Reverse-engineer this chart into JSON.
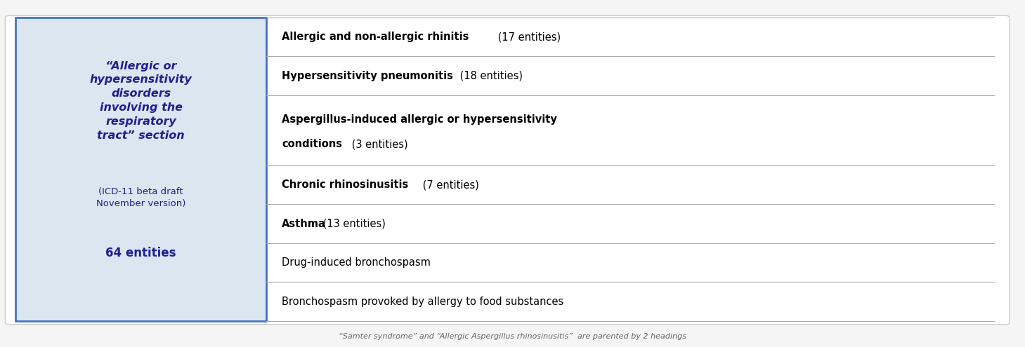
{
  "fig_width": 14.59,
  "fig_height": 4.95,
  "background_color": "#f5f5f5",
  "outer_box_color": "#ffffff",
  "outer_box_edge": "#cccccc",
  "left_panel_bg": "#dce6f1",
  "left_panel_border": "#4472c4",
  "left_panel_italic_text_lines": [
    "“Allergic or",
    "hypersensitivity",
    "disorders",
    "involving the",
    "respiratory",
    "tract” section"
  ],
  "left_panel_italic_color": "#1f1f8f",
  "left_panel_sub_text": "(ICD-11 beta draft\nNovember version)",
  "left_panel_sub_color": "#1f1f8f",
  "left_panel_bold_text": "64 entities",
  "left_panel_bold_color": "#1f1f8f",
  "right_rows": [
    {
      "bold": "Allergic and non-allergic rhinitis",
      "normal": " (17 entities)",
      "bold_row": true
    },
    {
      "bold": "Hypersensitivity pneumonitis",
      "normal": " (18 entities)",
      "bold_row": true
    },
    {
      "bold": "Aspergillus-induced allergic or hypersensitivity\nconditions",
      "normal": " (3 entities)",
      "bold_row": true,
      "two_line": true
    },
    {
      "bold": "Chronic rhinosinusitis",
      "normal": " (7 entities)",
      "bold_row": true
    },
    {
      "bold": "Asthma",
      "normal": " (13 entities)",
      "bold_row": true
    },
    {
      "bold": "",
      "normal": "Drug-induced bronchospasm",
      "bold_row": false
    },
    {
      "bold": "",
      "normal": "Bronchospasm provoked by allergy to food substances",
      "bold_row": false
    }
  ],
  "row_separator_color": "#aaaaaa",
  "footer_text": "“Samter syndrome” and “Allergic Aspergillus rhinosinusitis”  are parented by 2 headings",
  "footer_color": "#666666"
}
